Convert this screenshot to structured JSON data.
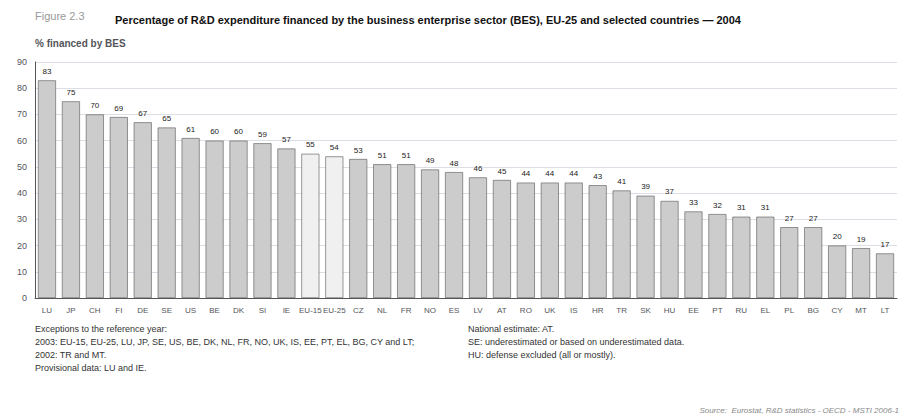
{
  "chart_data": {
    "type": "bar",
    "title": "Percentage of R&D expenditure financed by the business enterprise sector (BES), EU-25 and selected countries — 2004",
    "ylabel": "% financed by BES",
    "categories": [
      "LU",
      "JP",
      "CH",
      "FI",
      "DE",
      "SE",
      "US",
      "BE",
      "DK",
      "SI",
      "IE",
      "EU-15",
      "EU-25",
      "CZ",
      "NL",
      "FR",
      "NO",
      "ES",
      "LV",
      "AT",
      "RO",
      "UK",
      "IS",
      "HR",
      "TR",
      "SK",
      "HU",
      "EE",
      "PT",
      "RU",
      "EL",
      "PL",
      "BG",
      "CY",
      "MT",
      "LT"
    ],
    "values": [
      83,
      75,
      70,
      69,
      67,
      65,
      61,
      60,
      60,
      59,
      57,
      55,
      54,
      53,
      51,
      51,
      49,
      48,
      46,
      45,
      44,
      44,
      44,
      43,
      41,
      39,
      37,
      33,
      32,
      31,
      31,
      27,
      27,
      20,
      19,
      17
    ],
    "colors": [
      "#cccccc",
      "#cccccc",
      "#cccccc",
      "#cccccc",
      "#cccccc",
      "#cccccc",
      "#cccccc",
      "#cccccc",
      "#cccccc",
      "#cccccc",
      "#cccccc",
      "#f0f0f0",
      "#f0f0f0",
      "#cccccc",
      "#cccccc",
      "#cccccc",
      "#cccccc",
      "#cccccc",
      "#cccccc",
      "#cccccc",
      "#cccccc",
      "#cccccc",
      "#cccccc",
      "#cccccc",
      "#cccccc",
      "#cccccc",
      "#cccccc",
      "#cccccc",
      "#cccccc",
      "#cccccc",
      "#cccccc",
      "#cccccc",
      "#cccccc",
      "#cccccc",
      "#cccccc",
      "#cccccc"
    ],
    "ylim": [
      0,
      90
    ],
    "yticks": [
      0,
      10,
      20,
      30,
      40,
      50,
      60,
      70,
      80,
      90
    ],
    "grid": true,
    "data_labels": true,
    "annotations": [
      "Figure 2.3",
      "Exceptions to the reference year:\n2003: EU-15, EU-25, LU, JP, SE, US, BE, DK, NL, FR, NO, UK, IS, EE, PT, EL, BG, CY and LT;\n2002: TR and MT.\nProvisional data: LU and IE.",
      "National estimate: AT.\nSE: underestimated or based on underestimated data.\nHU: defense excluded (all or mostly).",
      "Source:  Eurostat, R&D statistics - OECD - MSTI 2006-1"
    ]
  }
}
